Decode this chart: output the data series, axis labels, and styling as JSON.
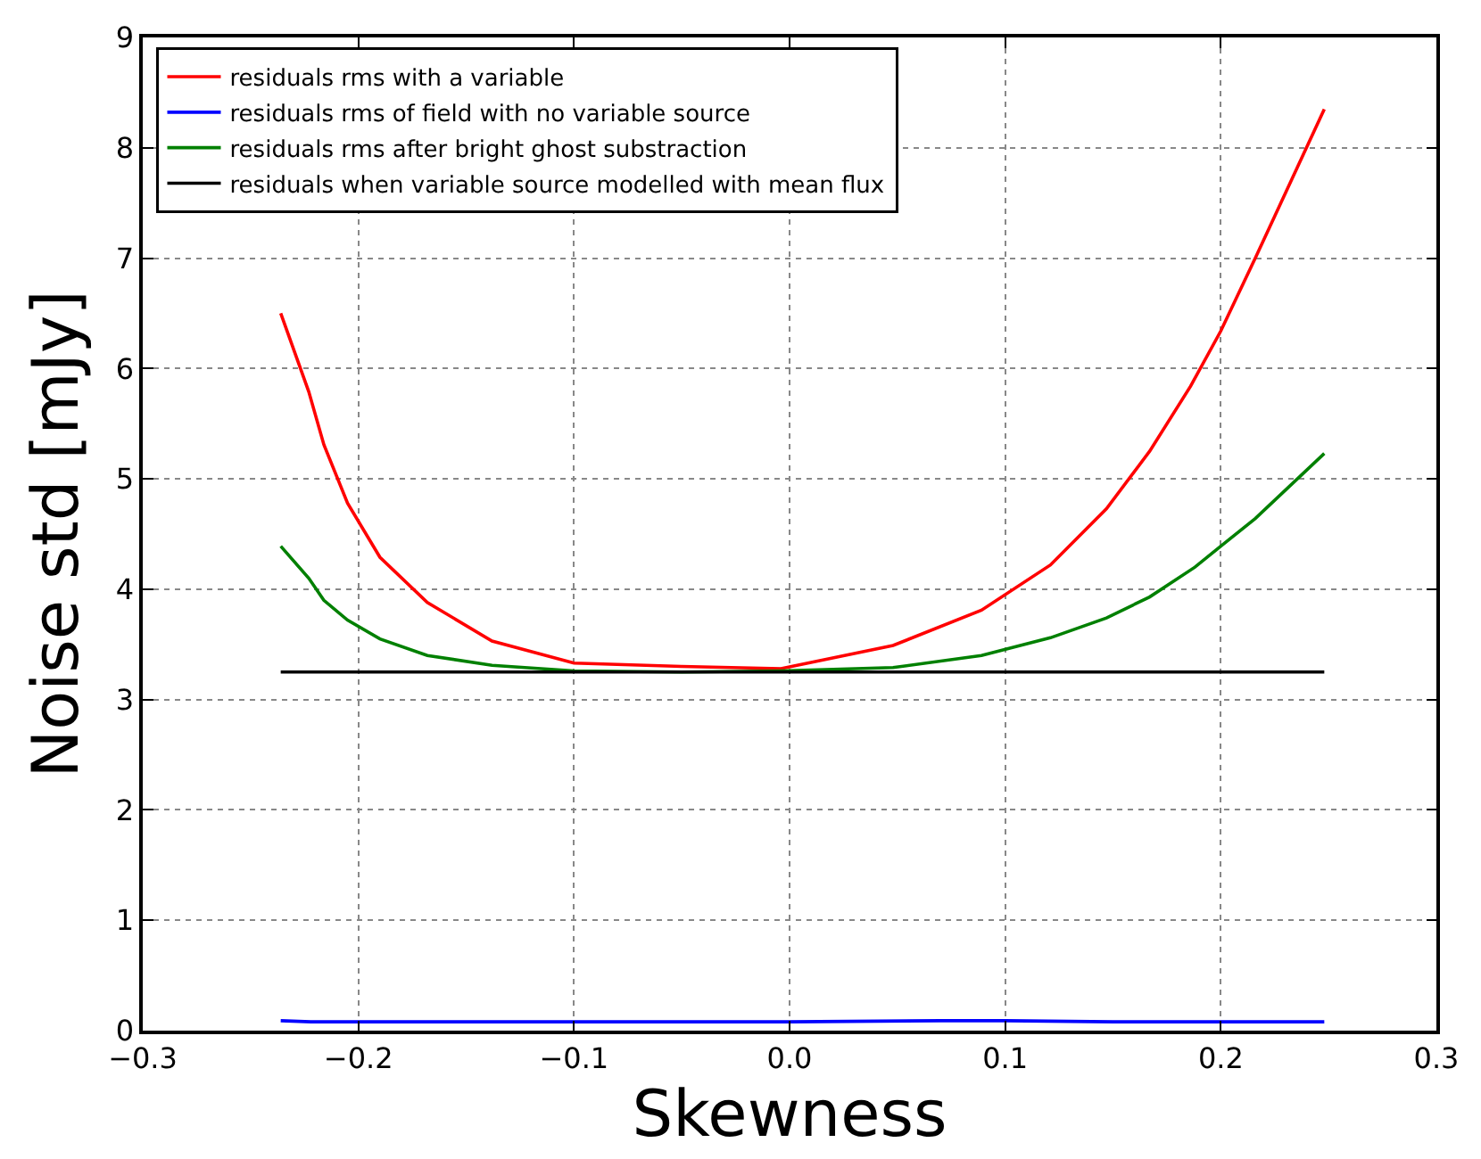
{
  "chart_data": {
    "type": "line",
    "xlabel": "Skewness",
    "ylabel": "Noise std [mJy]",
    "xlim": [
      -0.3,
      0.3
    ],
    "xticks": [
      {
        "value": -0.3,
        "label": "−0.3"
      },
      {
        "value": -0.2,
        "label": "−0.2"
      },
      {
        "value": -0.1,
        "label": "−0.1"
      },
      {
        "value": 0,
        "label": "0.0"
      },
      {
        "value": 0.1,
        "label": "0.1"
      },
      {
        "value": 0.2,
        "label": "0.2"
      },
      {
        "value": 0.3,
        "label": "0.3"
      }
    ],
    "ylim": [
      0,
      9
    ],
    "yticks": [
      0,
      1,
      2,
      3,
      4,
      5,
      6,
      7,
      8,
      9
    ],
    "grid": true,
    "legend": "top left",
    "line_style": "solid",
    "marker": "none",
    "series": [
      {
        "name": "residuals rms with a variable",
        "color": "#ff0000",
        "x": [
          -0.236,
          -0.223,
          -0.216,
          -0.205,
          -0.19,
          -0.168,
          -0.138,
          -0.1,
          -0.05,
          -0.004,
          0.048,
          0.089,
          0.121,
          0.147,
          0.167,
          0.186,
          0.2,
          0.216,
          0.248
        ],
        "values": [
          6.5,
          5.79,
          5.31,
          4.78,
          4.29,
          3.88,
          3.53,
          3.33,
          3.3,
          3.28,
          3.49,
          3.81,
          4.22,
          4.73,
          5.25,
          5.84,
          6.34,
          7.0,
          8.35
        ]
      },
      {
        "name": "residuals rms of field with no variable source",
        "color": "#0000ff",
        "x": [
          -0.236,
          -0.222,
          -0.1,
          0.0,
          0.07,
          0.1,
          0.15,
          0.248
        ],
        "values": [
          0.09,
          0.08,
          0.08,
          0.08,
          0.09,
          0.09,
          0.08,
          0.08
        ]
      },
      {
        "name": "residuals rms after bright ghost substraction",
        "color": "#008000",
        "x": [
          -0.236,
          -0.223,
          -0.216,
          -0.205,
          -0.19,
          -0.168,
          -0.138,
          -0.1,
          -0.05,
          -0.004,
          0.048,
          0.089,
          0.121,
          0.147,
          0.167,
          0.188,
          0.2,
          0.216,
          0.248
        ],
        "values": [
          4.39,
          4.1,
          3.9,
          3.72,
          3.55,
          3.4,
          3.31,
          3.26,
          3.25,
          3.26,
          3.29,
          3.4,
          3.56,
          3.74,
          3.93,
          4.2,
          4.39,
          4.64,
          5.23
        ]
      },
      {
        "name": "residuals when variable source modelled with mean flux",
        "color": "#000000",
        "x": [
          -0.236,
          0.248
        ],
        "values": [
          3.25,
          3.25
        ]
      }
    ]
  }
}
